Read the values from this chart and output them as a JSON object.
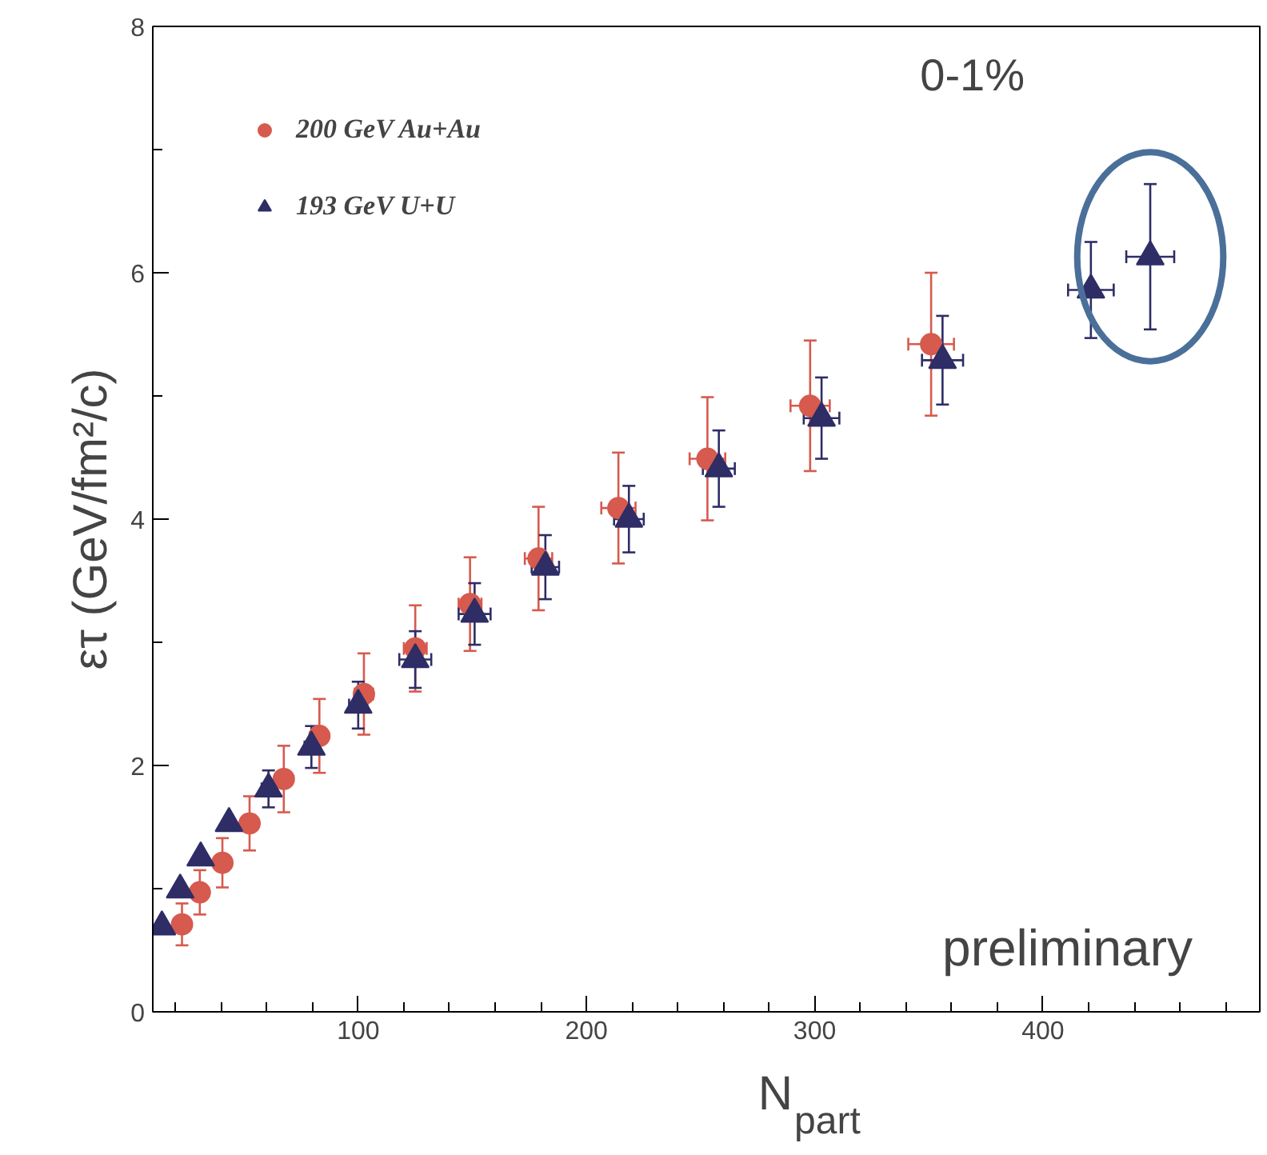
{
  "chart_data": {
    "type": "scatter",
    "xlabel": "N$_{part}$",
    "ylabel": "ετ (GeV/fm²/c)",
    "xlim": [
      10,
      495
    ],
    "xticks": [
      100,
      200,
      300,
      400
    ],
    "ylim": [
      0,
      8
    ],
    "yticks": [
      0,
      2,
      4,
      6,
      8
    ],
    "grid": false,
    "legend": "top left",
    "series": [
      {
        "name": "200 GeV Au+Au",
        "color": "#d65a4e",
        "marker": "circle",
        "x": [
          22.8,
          30.6,
          40.5,
          52.4,
          67.4,
          83,
          102.5,
          125,
          149,
          179,
          214,
          253,
          298,
          351
        ],
        "values": [
          0.71,
          0.97,
          1.21,
          1.53,
          1.89,
          2.24,
          2.58,
          2.95,
          3.31,
          3.68,
          4.09,
          4.49,
          4.92,
          5.42
        ],
        "errors": [
          0.17,
          0.18,
          0.2,
          0.22,
          0.27,
          0.3,
          0.33,
          0.35,
          0.38,
          0.42,
          0.45,
          0.5,
          0.53,
          0.58
        ],
        "xerrors": [
          null,
          null,
          null,
          null,
          null,
          3,
          4,
          5,
          5,
          6,
          7.5,
          7.8,
          8.6,
          10
        ]
      },
      {
        "name": "193 GeV U+U",
        "color": "#2e2d66",
        "marker": "triangle",
        "x": [
          14,
          22,
          31,
          43.4,
          60.7,
          79.5,
          100,
          125,
          151,
          182,
          218.6,
          258,
          303,
          356,
          421,
          447
        ],
        "values": [
          0.69,
          0.99,
          1.25,
          1.53,
          1.81,
          2.15,
          2.49,
          2.86,
          3.23,
          3.61,
          4.0,
          4.41,
          4.82,
          5.29,
          5.86,
          6.13
        ],
        "errors": [
          null,
          null,
          null,
          null,
          0.15,
          0.17,
          0.19,
          0.23,
          0.25,
          0.26,
          0.27,
          0.31,
          0.33,
          0.36,
          0.39,
          0.59
        ],
        "xerrors": [
          null,
          null,
          null,
          null,
          3,
          3,
          4,
          7,
          7,
          6,
          6.5,
          7,
          7.8,
          9,
          10,
          10.5
        ]
      }
    ],
    "annotations": [
      "0-1%",
      "preliminary"
    ]
  }
}
